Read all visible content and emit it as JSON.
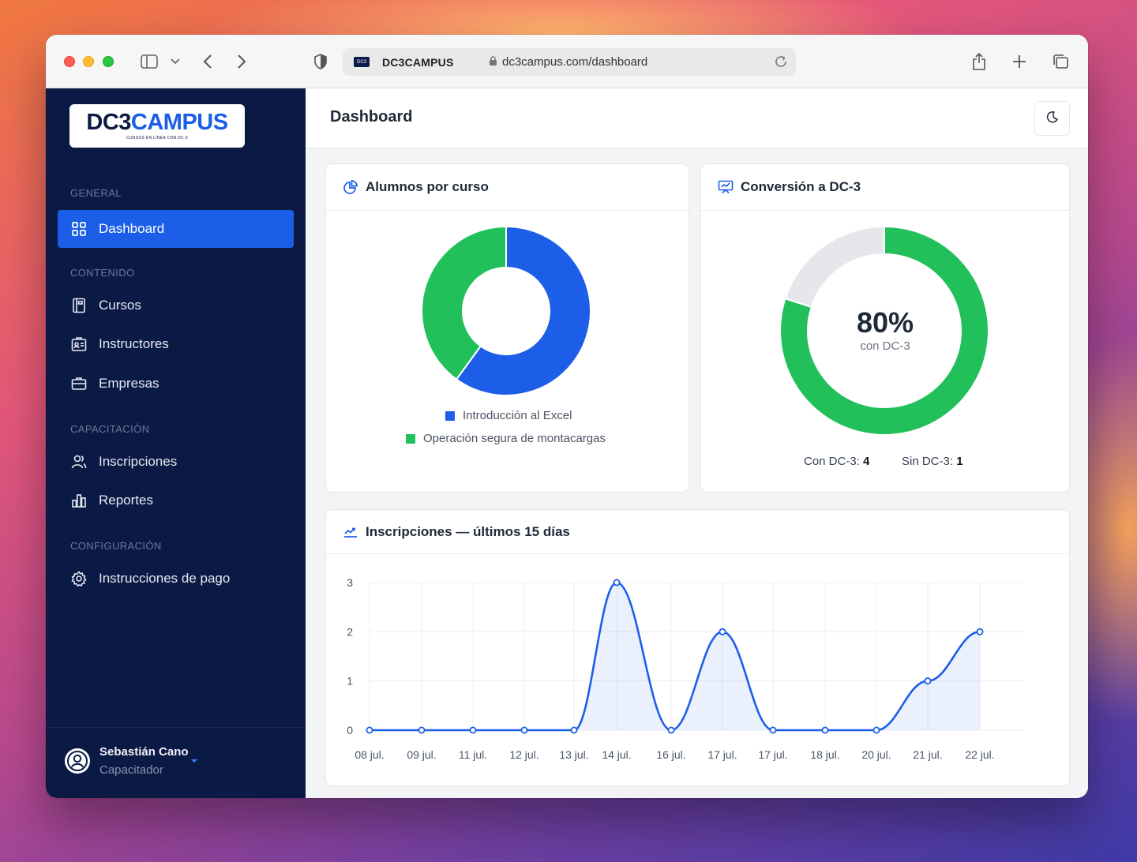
{
  "browser": {
    "site_name": "DC3CAMPUS",
    "url": "dc3campus.com/dashboard",
    "favicon_text": "DC3"
  },
  "sidebar": {
    "logo": {
      "main_a": "DC3",
      "main_b": "CAMPUS",
      "tagline": "CURSOS EN LÍNEA CON DC-3"
    },
    "sections": {
      "general": "GENERAL",
      "contenido": "CONTENIDO",
      "capacitacion": "CAPACITACIÓN",
      "configuracion": "CONFIGURACIÓN"
    },
    "items": {
      "dashboard": "Dashboard",
      "cursos": "Cursos",
      "instructores": "Instructores",
      "empresas": "Empresas",
      "inscripciones": "Inscripciones",
      "reportes": "Reportes",
      "instrucciones_pago": "Instrucciones de pago"
    },
    "user": {
      "name": "Sebastián Cano",
      "role": "Capacitador"
    }
  },
  "header": {
    "title": "Dashboard"
  },
  "colors": {
    "accent": "#1d5ee8",
    "green": "#22c05a",
    "navy": "#0b1a45",
    "gray_track": "#e5e7eb"
  },
  "cards": {
    "alumnos": {
      "title": "Alumnos por curso"
    },
    "conversion": {
      "title": "Conversión a DC-3",
      "percent_text": "80%",
      "sub_text": "con DC-3",
      "con_label": "Con DC-3:",
      "con_value": "4",
      "sin_label": "Sin DC-3:",
      "sin_value": "1"
    },
    "inscripciones": {
      "title": "Inscripciones — últimos 15 días"
    }
  },
  "chart_data": [
    {
      "type": "pie",
      "title": "Alumnos por curso",
      "labels": [
        "Introducción al Excel",
        "Operación segura de montacargas"
      ],
      "values": [
        3,
        2
      ],
      "colors": [
        "#1d5ee8",
        "#22c05a"
      ],
      "legend": "bottom"
    },
    {
      "type": "pie",
      "title": "Conversión a DC-3",
      "labels": [
        "Con DC-3",
        "Sin DC-3"
      ],
      "values": [
        4,
        1
      ],
      "colors": [
        "#22c05a",
        "#e5e7eb"
      ]
    },
    {
      "type": "area",
      "title": "Inscripciones — últimos 15 días",
      "categories": [
        "08 jul.",
        "09 jul.",
        "11 jul.",
        "12 jul.",
        "13 jul.",
        "14 jul.",
        "16 jul.",
        "17 jul.",
        "17 jul.",
        "18 jul.",
        "20 jul.",
        "21 jul.",
        "22 jul."
      ],
      "values": [
        0,
        0,
        0,
        0,
        0,
        3,
        0,
        2,
        0,
        0,
        0,
        1,
        2
      ],
      "ylim": [
        0,
        3
      ],
      "yticks": [
        0,
        1,
        2,
        3
      ],
      "grid": true,
      "color": "#1d5ee8"
    }
  ]
}
